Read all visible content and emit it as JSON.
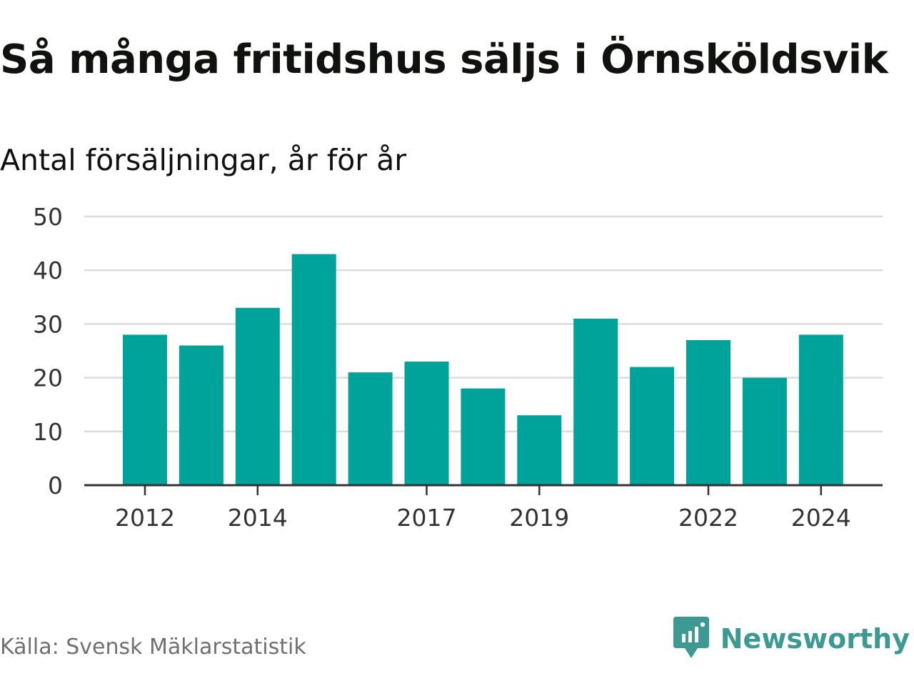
{
  "header": {
    "title": "Så många fritidshus säljs i Örnsköldsvik",
    "subtitle": "Antal försäljningar, år för år"
  },
  "footer": {
    "source": "Källa: Svensk Mäklarstatistik",
    "brand": "Newsworthy",
    "brand_icon": "newsworthy-logo-icon"
  },
  "colors": {
    "bar": "#00a399",
    "grid": "#dcdcdc",
    "axis": "#333333",
    "brand": "#3c9a92"
  },
  "chart_data": {
    "type": "bar",
    "title": "Så många fritidshus säljs i Örnsköldsvik",
    "subtitle": "Antal försäljningar, år för år",
    "categories": [
      "2012",
      "2013",
      "2014",
      "2015",
      "2016",
      "2017",
      "2018",
      "2019",
      "2020",
      "2021",
      "2022",
      "2023",
      "2024"
    ],
    "values": [
      28,
      26,
      33,
      43,
      21,
      23,
      18,
      13,
      31,
      22,
      27,
      20,
      28
    ],
    "x_tick_labels": [
      "2012",
      "2014",
      "2017",
      "2019",
      "2022",
      "2024"
    ],
    "y_ticks": [
      0,
      10,
      20,
      30,
      40,
      50
    ],
    "ylim": [
      0,
      50
    ],
    "xlabel": "",
    "ylabel": "",
    "grid": true,
    "legend": "none"
  }
}
